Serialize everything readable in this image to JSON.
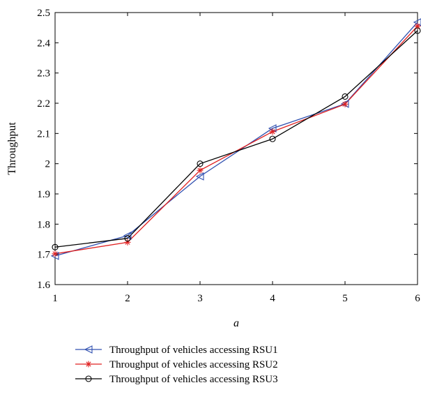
{
  "chart_data": {
    "type": "line",
    "xlabel": "a",
    "ylabel": "Throughput",
    "xlim": [
      1,
      6
    ],
    "ylim": [
      1.6,
      2.5
    ],
    "x": [
      1,
      2,
      3,
      4,
      5,
      6
    ],
    "xticks": [
      "1",
      "2",
      "3",
      "4",
      "5",
      "6"
    ],
    "yticks": [
      "1.6",
      "1.7",
      "1.8",
      "1.9",
      "2",
      "2.1",
      "2.2",
      "2.3",
      "2.4",
      "2.5"
    ],
    "grid": false,
    "legend_position": "bottom",
    "series": [
      {
        "name": "Throughput of vehicles accessing RSU1",
        "color": "#3050b0",
        "marker": "triangle-left",
        "values": [
          1.695,
          1.762,
          1.958,
          2.117,
          2.198,
          2.468
        ]
      },
      {
        "name": "Throughput of vehicles accessing RSU2",
        "color": "#e02020",
        "marker": "asterisk",
        "values": [
          1.702,
          1.74,
          1.978,
          2.106,
          2.197,
          2.455
        ]
      },
      {
        "name": "Throughput of vehicles accessing RSU3",
        "color": "#000000",
        "marker": "circle",
        "values": [
          1.724,
          1.753,
          2.0,
          2.082,
          2.222,
          2.44
        ]
      }
    ]
  }
}
